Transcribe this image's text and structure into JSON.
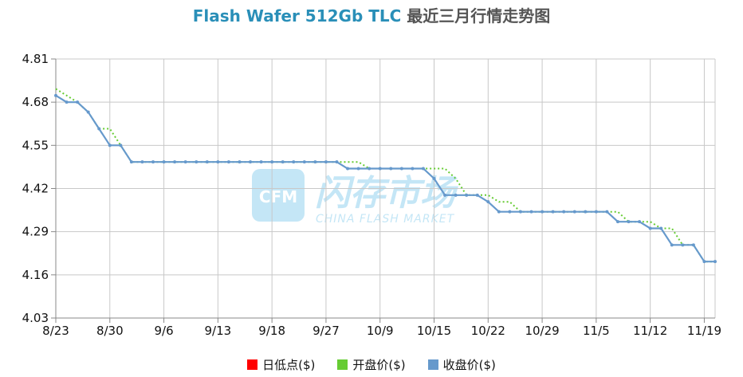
{
  "title": {
    "main": "Flash Wafer 512Gb TLC",
    "suffix": "最近三月行情走势图"
  },
  "watermark": {
    "logo_text": "CFM",
    "cn": "闪存市场",
    "en": "CHINA FLASH MARKET"
  },
  "chart_data": {
    "type": "line",
    "x_tick_labels": [
      "8/23",
      "8/30",
      "9/6",
      "9/13",
      "9/18",
      "9/27",
      "10/9",
      "10/15",
      "10/22",
      "10/29",
      "11/5",
      "11/12",
      "11/19"
    ],
    "x_tick_index": [
      0,
      5,
      10,
      15,
      20,
      25,
      30,
      35,
      40,
      45,
      50,
      55,
      60
    ],
    "n_points": 62,
    "ylim": [
      4.03,
      4.81
    ],
    "y_ticks": [
      "4.81",
      "4.68",
      "4.55",
      "4.42",
      "4.29",
      "4.16",
      "4.03"
    ],
    "grid": true,
    "legend_position": "bottom",
    "series": [
      {
        "name": "日低点($)",
        "color": "#ff0000",
        "values": []
      },
      {
        "name": "开盘价($)",
        "color": "#66cc33",
        "style": "dotted",
        "values": [
          4.72,
          4.7,
          4.68,
          4.65,
          4.6,
          4.6,
          4.55,
          4.5,
          4.5,
          4.5,
          4.5,
          4.5,
          4.5,
          4.5,
          4.5,
          4.5,
          4.5,
          4.5,
          4.5,
          4.5,
          4.5,
          4.5,
          4.5,
          4.5,
          4.5,
          4.5,
          4.5,
          4.5,
          4.5,
          4.48,
          4.48,
          4.48,
          4.48,
          4.48,
          4.48,
          4.48,
          4.48,
          4.45,
          4.4,
          4.4,
          4.4,
          4.38,
          4.38,
          4.35,
          4.35,
          4.35,
          4.35,
          4.35,
          4.35,
          4.35,
          4.35,
          4.35,
          4.35,
          4.32,
          4.32,
          4.32,
          4.3,
          4.3,
          4.25,
          4.25,
          4.2,
          4.2
        ]
      },
      {
        "name": "收盘价($)",
        "color": "#6699cc",
        "values": [
          4.7,
          4.68,
          4.68,
          4.65,
          4.6,
          4.55,
          4.55,
          4.5,
          4.5,
          4.5,
          4.5,
          4.5,
          4.5,
          4.5,
          4.5,
          4.5,
          4.5,
          4.5,
          4.5,
          4.5,
          4.5,
          4.5,
          4.5,
          4.5,
          4.5,
          4.5,
          4.5,
          4.48,
          4.48,
          4.48,
          4.48,
          4.48,
          4.48,
          4.48,
          4.48,
          4.45,
          4.4,
          4.4,
          4.4,
          4.4,
          4.38,
          4.35,
          4.35,
          4.35,
          4.35,
          4.35,
          4.35,
          4.35,
          4.35,
          4.35,
          4.35,
          4.35,
          4.32,
          4.32,
          4.32,
          4.3,
          4.3,
          4.25,
          4.25,
          4.25,
          4.2,
          4.2
        ]
      }
    ]
  }
}
